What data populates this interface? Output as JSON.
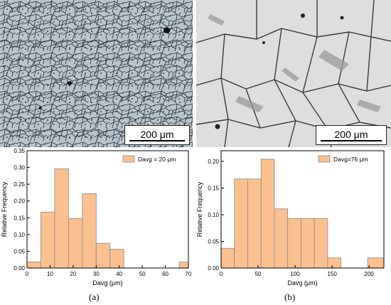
{
  "micrographs": [
    {
      "scale_label": "200 μm"
    },
    {
      "scale_label": "200 μm"
    }
  ],
  "panel_labels": [
    "(a)",
    "(b)"
  ],
  "colors": {
    "bar_fill": "#FAC090",
    "bar_stroke": "#8a8a8a",
    "axis": "#000000"
  },
  "chart_data": [
    {
      "type": "bar",
      "title": "",
      "xlabel": "Davg (μm)",
      "ylabel": "Relative Frequency",
      "xlim": [
        0,
        70
      ],
      "ylim": [
        0,
        0.35
      ],
      "xticks": [
        0,
        10,
        20,
        30,
        40,
        50,
        60,
        70
      ],
      "yticks": [
        0.0,
        0.05,
        0.1,
        0.15,
        0.2,
        0.25,
        0.3,
        0.35
      ],
      "bin_edges": [
        0,
        6,
        12,
        18,
        24,
        30,
        36,
        42,
        48,
        54,
        60,
        66,
        70
      ],
      "values": [
        0.018,
        0.167,
        0.296,
        0.148,
        0.222,
        0.074,
        0.056,
        0,
        0,
        0,
        0,
        0.018
      ],
      "legend": {
        "label": "Davg = 20 μm",
        "position": "top-right"
      }
    },
    {
      "type": "bar",
      "title": "",
      "xlabel": "Davg (μm)",
      "ylabel": "Relative Frequency",
      "xlim": [
        0,
        220
      ],
      "ylim": [
        0,
        0.22
      ],
      "xticks": [
        0,
        50,
        100,
        150,
        200
      ],
      "yticks": [
        0.0,
        0.05,
        0.1,
        0.15,
        0.2
      ],
      "bin_edges": [
        0,
        18,
        36,
        54,
        72,
        90,
        108,
        126,
        144,
        162,
        180,
        198,
        220
      ],
      "values": [
        0.037,
        0.167,
        0.167,
        0.204,
        0.111,
        0.093,
        0.093,
        0.093,
        0.019,
        0,
        0,
        0.019
      ],
      "legend": {
        "label": "Davg=76 μm",
        "position": "top-right"
      }
    }
  ]
}
